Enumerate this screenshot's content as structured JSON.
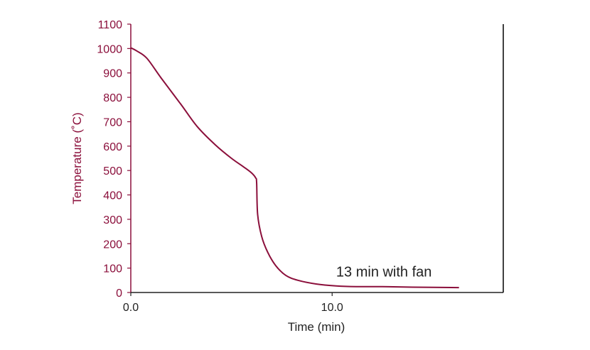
{
  "chart_data": {
    "type": "line",
    "xlabel": "Time (min)",
    "ylabel": "Temperature (˚C)",
    "xlim": [
      0,
      18.5
    ],
    "ylim": [
      0,
      1100
    ],
    "x_ticks": [
      {
        "value": 0,
        "label": "0.0"
      },
      {
        "value": 10,
        "label": "10.0"
      }
    ],
    "y_ticks": [
      0,
      100,
      200,
      300,
      400,
      500,
      600,
      700,
      800,
      900,
      1000,
      1100
    ],
    "series": [
      {
        "color": "#8b0f3b",
        "x": [
          0,
          0.3,
          0.8,
          1.5,
          2.5,
          3.3,
          4.2,
          5.0,
          5.6,
          6.0,
          6.2,
          6.25,
          6.3,
          6.5,
          6.8,
          7.2,
          7.7,
          8.3,
          9.2,
          10.2,
          11.2,
          12.5,
          14.0,
          16.3
        ],
        "y": [
          1003,
          990,
          960,
          880,
          770,
          680,
          605,
          550,
          515,
          490,
          470,
          450,
          320,
          230,
          165,
          110,
          70,
          50,
          35,
          27,
          24,
          24,
          22,
          20
        ]
      }
    ],
    "annotations": [
      {
        "text": "13 min with fan",
        "x": 10.2,
        "y": 65
      }
    ],
    "colors": {
      "axis": "#8b0f3b",
      "text": "#222222",
      "right_axis": "#000000"
    },
    "grid": false,
    "legend": "none"
  }
}
